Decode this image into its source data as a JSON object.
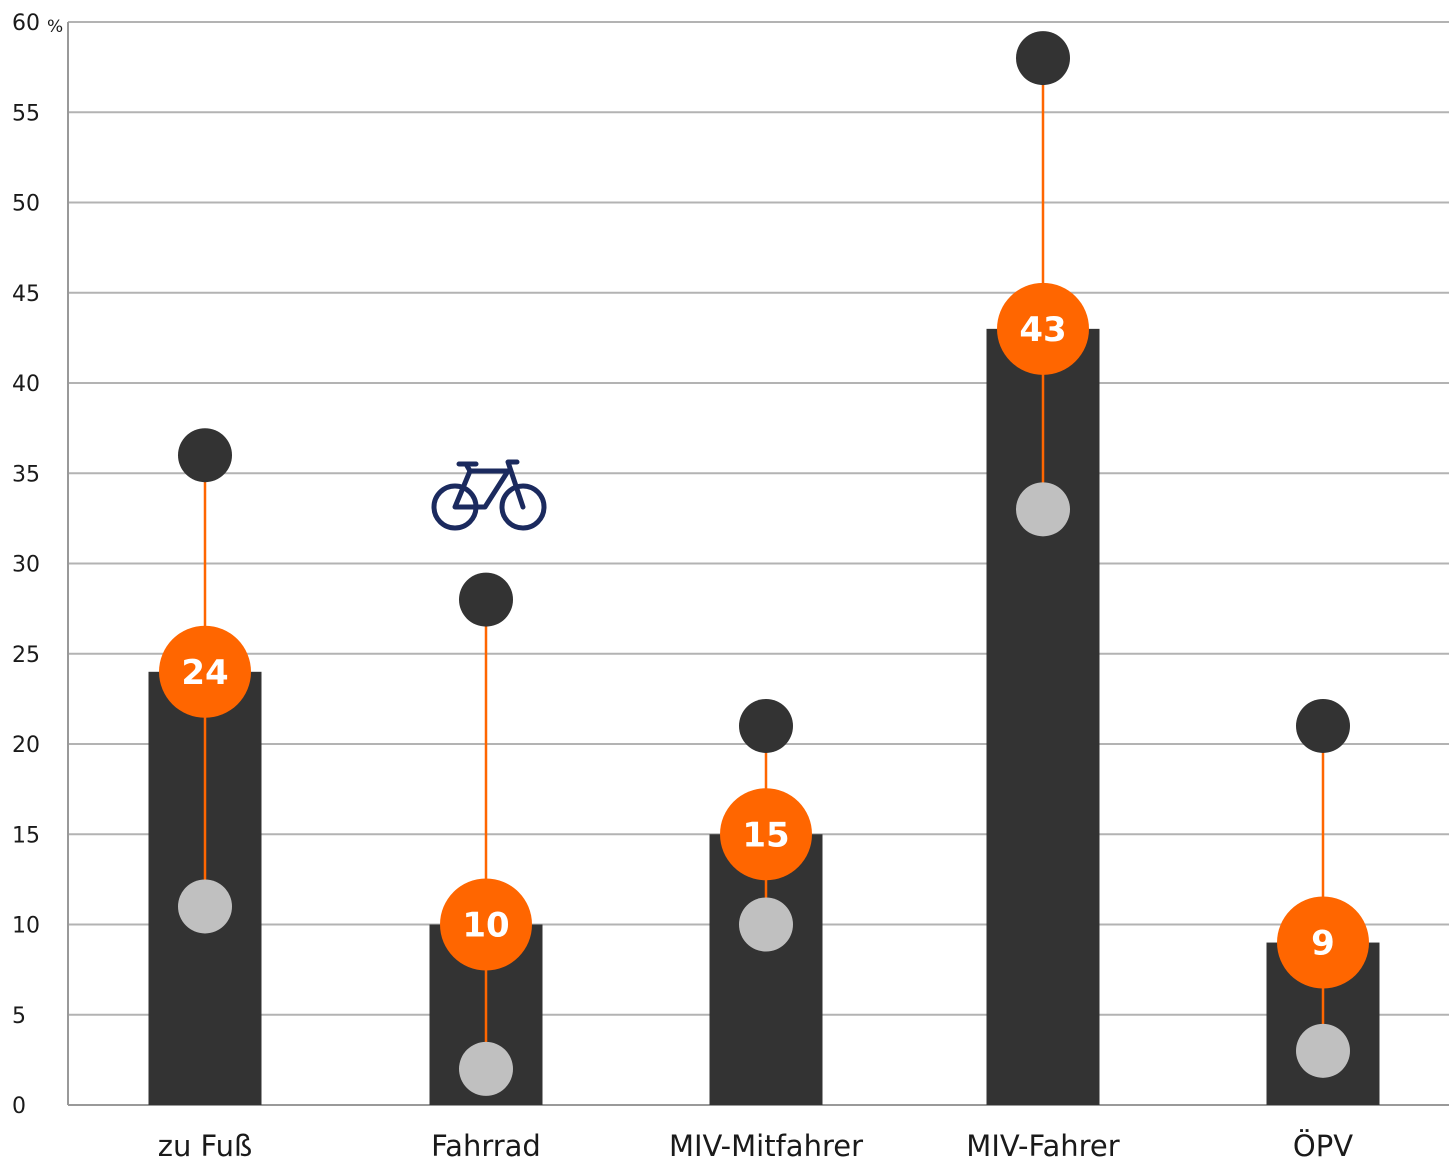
{
  "chart_data": {
    "type": "bar",
    "y_unit": "%",
    "ylim": [
      0,
      60
    ],
    "yticks": [
      "0",
      "5",
      "10",
      "15",
      "20",
      "25",
      "30",
      "35",
      "40",
      "45",
      "50",
      "55",
      "60"
    ],
    "grid": true,
    "categories": [
      "zu Fuß",
      "Fahrrad",
      "MIV-Mitfahrer",
      "MIV-Fahrer",
      "ÖPV"
    ],
    "series": [
      {
        "type": "bar",
        "values": [
          24,
          10,
          15,
          43,
          9
        ]
      },
      {
        "type": "scatter",
        "values": [
          36,
          28,
          21,
          58,
          21
        ]
      },
      {
        "type": "scatter",
        "values": [
          11,
          2,
          10,
          33,
          3
        ]
      }
    ],
    "data_labels": [
      "24",
      "10",
      "15",
      "43",
      "9"
    ],
    "highlight_icon": {
      "category": "Fahrrad",
      "icon": "bicycle-icon"
    },
    "colors": {
      "bar": "#333333",
      "marker_bar": "#ff6600",
      "range_line": "#ff6600",
      "high_dot": "#333333",
      "low_dot": "#c0c0c0",
      "grid": "#b3b3b3",
      "axis": "#999999",
      "icon": "#1b2a5e"
    }
  }
}
